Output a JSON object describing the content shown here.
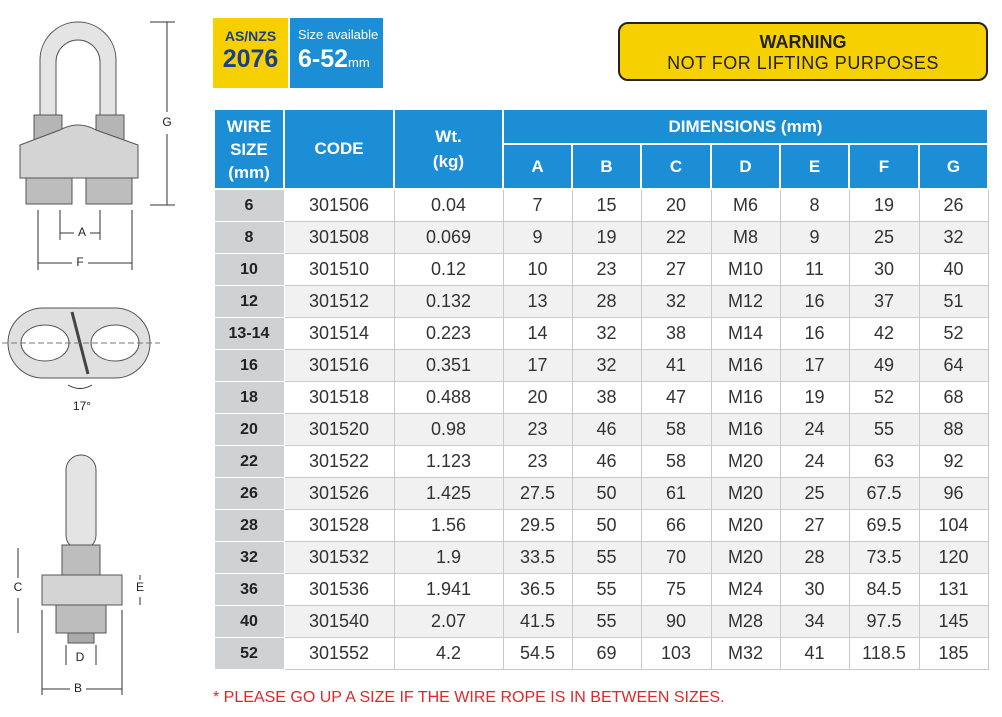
{
  "diagram_labels": {
    "g": "G",
    "a": "A",
    "f": "F",
    "angle": "17°",
    "c": "C",
    "e": "E",
    "d": "D",
    "b": "B"
  },
  "badge_standard": {
    "line1": "AS/NZS",
    "line2": "2076"
  },
  "badge_size": {
    "caption": "Size available",
    "range": "6-52",
    "unit": "mm"
  },
  "warning": {
    "title": "WARNING",
    "text": "NOT FOR LIFTING PURPOSES"
  },
  "table": {
    "columns": [
      "WIRE SIZE (mm)",
      "CODE",
      "Wt. (kg)"
    ],
    "group_header": "DIMENSIONS (mm)",
    "dimension_columns": [
      "A",
      "B",
      "C",
      "D",
      "E",
      "F",
      "G"
    ],
    "rows": [
      [
        "6",
        "301506",
        "0.04",
        "7",
        "15",
        "20",
        "M6",
        "8",
        "19",
        "26"
      ],
      [
        "8",
        "301508",
        "0.069",
        "9",
        "19",
        "22",
        "M8",
        "9",
        "25",
        "32"
      ],
      [
        "10",
        "301510",
        "0.12",
        "10",
        "23",
        "27",
        "M10",
        "11",
        "30",
        "40"
      ],
      [
        "12",
        "301512",
        "0.132",
        "13",
        "28",
        "32",
        "M12",
        "16",
        "37",
        "51"
      ],
      [
        "13-14",
        "301514",
        "0.223",
        "14",
        "32",
        "38",
        "M14",
        "16",
        "42",
        "52"
      ],
      [
        "16",
        "301516",
        "0.351",
        "17",
        "32",
        "41",
        "M16",
        "17",
        "49",
        "64"
      ],
      [
        "18",
        "301518",
        "0.488",
        "20",
        "38",
        "47",
        "M16",
        "19",
        "52",
        "68"
      ],
      [
        "20",
        "301520",
        "0.98",
        "23",
        "46",
        "58",
        "M16",
        "24",
        "55",
        "88"
      ],
      [
        "22",
        "301522",
        "1.123",
        "23",
        "46",
        "58",
        "M20",
        "24",
        "63",
        "92"
      ],
      [
        "26",
        "301526",
        "1.425",
        "27.5",
        "50",
        "61",
        "M20",
        "25",
        "67.5",
        "96"
      ],
      [
        "28",
        "301528",
        "1.56",
        "29.5",
        "50",
        "66",
        "M20",
        "27",
        "69.5",
        "104"
      ],
      [
        "32",
        "301532",
        "1.9",
        "33.5",
        "55",
        "70",
        "M20",
        "28",
        "73.5",
        "120"
      ],
      [
        "36",
        "301536",
        "1.941",
        "36.5",
        "55",
        "75",
        "M24",
        "30",
        "84.5",
        "131"
      ],
      [
        "40",
        "301540",
        "2.07",
        "41.5",
        "55",
        "90",
        "M28",
        "34",
        "97.5",
        "145"
      ],
      [
        "52",
        "301552",
        "4.2",
        "54.5",
        "69",
        "103",
        "M32",
        "41",
        "118.5",
        "185"
      ]
    ]
  },
  "footnote": "* PLEASE GO UP A SIZE IF THE WIRE ROPE IS IN BETWEEN SIZES."
}
